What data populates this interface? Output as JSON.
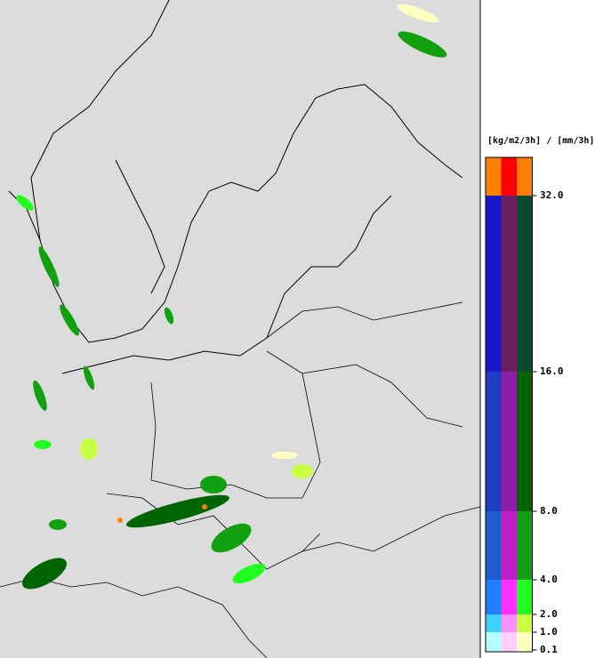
{
  "legend": {
    "title": "[kg/m2/3h] / [mm/3h]",
    "bands": [
      {
        "colors": [
          "#ff8000",
          "#ff0000",
          "#ff8000"
        ]
      },
      {
        "colors": [
          "#1818c8",
          "#6a2060",
          "#084a30"
        ]
      },
      {
        "colors": [
          "#1e3ec4",
          "#8c1ea8",
          "#006400"
        ]
      },
      {
        "colors": [
          "#205cd0",
          "#c01ec8",
          "#10a010"
        ]
      },
      {
        "colors": [
          "#2080ff",
          "#ff30ff",
          "#20ff20"
        ]
      },
      {
        "colors": [
          "#40d0ff",
          "#ff90ff",
          "#c8ff40"
        ]
      },
      {
        "colors": [
          "#b4ffff",
          "#ffd0ff",
          "#ffffc0"
        ]
      }
    ],
    "ticks": [
      {
        "value": 32,
        "label": "32.0"
      },
      {
        "value": 16,
        "label": "16.0"
      },
      {
        "value": 8,
        "label": "8.0"
      },
      {
        "value": 4,
        "label": "4.0"
      },
      {
        "value": 2,
        "label": "2.0"
      },
      {
        "value": 1,
        "label": "1.0"
      },
      {
        "value": 0.1,
        "label": "0.1"
      }
    ]
  }
}
